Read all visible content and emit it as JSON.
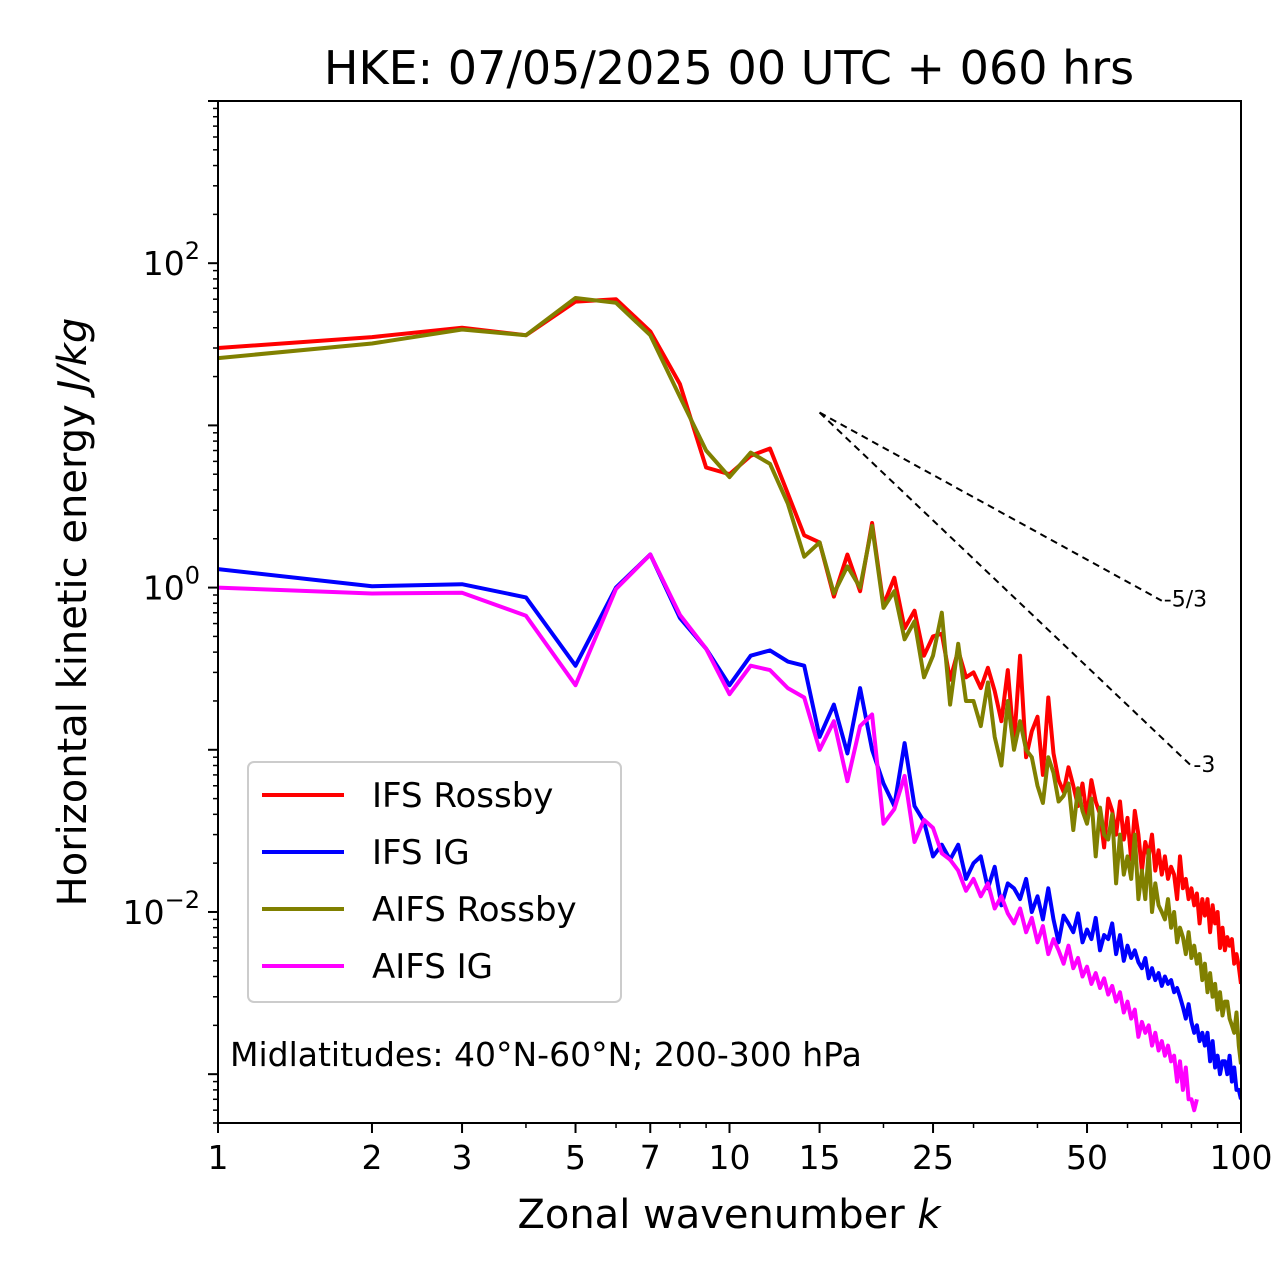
{
  "chart_data": {
    "type": "line",
    "title": "HKE: 07/05/2025 00 UTC + 060 hrs",
    "xlabel": "Zonal wavenumber",
    "xlabel_italic": "k",
    "ylabel": "Horizontal kinetic energy",
    "ylabel_italic": "J/kg",
    "xscale": "log",
    "yscale": "log",
    "xlim": [
      1,
      100
    ],
    "ylim": [
      0.0005,
      1000
    ],
    "x_ticks": [
      {
        "value": 1,
        "label": "1"
      },
      {
        "value": 2,
        "label": "2"
      },
      {
        "value": 3,
        "label": "3"
      },
      {
        "value": 5,
        "label": "5"
      },
      {
        "value": 7,
        "label": "7"
      },
      {
        "value": 10,
        "label": "10"
      },
      {
        "value": 15,
        "label": "15"
      },
      {
        "value": 25,
        "label": "25"
      },
      {
        "value": 50,
        "label": "50"
      },
      {
        "value": 100,
        "label": "100"
      }
    ],
    "y_ticks": [
      {
        "value": 0.01,
        "base": "10",
        "exp": "−2"
      },
      {
        "value": 1,
        "base": "10",
        "exp": "0"
      },
      {
        "value": 100,
        "base": "10",
        "exp": "2"
      }
    ],
    "grid": false,
    "legend_position": "lower-left",
    "annotation": "Midlatitudes: 40°N-60°N; 200-300 hPa",
    "reference_lines": [
      {
        "label": "-5/3",
        "x": [
          15,
          70
        ],
        "y": [
          12.0,
          0.83
        ]
      },
      {
        "label": "-3",
        "x": [
          15,
          80
        ],
        "y": [
          12.0,
          0.0795
        ]
      }
    ],
    "series": [
      {
        "name": "IFS Rossby",
        "color": "#ff0000",
        "x": [
          1,
          2,
          3,
          4,
          5,
          6,
          7,
          8,
          9,
          10,
          11,
          12,
          13,
          14,
          15,
          16,
          17,
          18,
          19,
          20,
          21,
          22,
          23,
          24,
          25,
          26,
          27,
          28,
          29,
          30,
          31,
          32,
          33,
          34,
          35,
          36,
          37,
          38,
          39,
          40,
          41,
          42,
          43,
          44,
          45,
          46,
          47,
          48,
          49,
          50,
          51,
          52,
          53,
          54,
          55,
          56,
          57,
          58,
          59,
          60,
          61,
          62,
          63,
          64,
          65,
          66,
          67,
          68,
          69,
          70,
          71,
          72,
          73,
          74,
          75,
          76,
          77,
          78,
          79,
          80,
          81,
          82,
          83,
          84,
          85,
          86,
          87,
          88,
          89,
          90,
          91,
          92,
          93,
          94,
          95,
          96,
          97,
          98,
          99,
          100
        ],
        "y": [
          30,
          35,
          40,
          36,
          58,
          60,
          38,
          18,
          5.5,
          5.0,
          6.5,
          7.2,
          3.8,
          2.1,
          1.9,
          0.88,
          1.6,
          0.95,
          2.5,
          0.78,
          1.15,
          0.56,
          0.72,
          0.38,
          0.5,
          0.52,
          0.27,
          0.41,
          0.28,
          0.3,
          0.24,
          0.32,
          0.23,
          0.15,
          0.31,
          0.11,
          0.38,
          0.09,
          0.13,
          0.16,
          0.07,
          0.21,
          0.095,
          0.065,
          0.055,
          0.078,
          0.06,
          0.045,
          0.062,
          0.038,
          0.065,
          0.048,
          0.04,
          0.025,
          0.05,
          0.042,
          0.03,
          0.048,
          0.028,
          0.038,
          0.021,
          0.042,
          0.03,
          0.018,
          0.027,
          0.022,
          0.03,
          0.018,
          0.024,
          0.017,
          0.022,
          0.016,
          0.019,
          0.017,
          0.012,
          0.022,
          0.014,
          0.016,
          0.012,
          0.014,
          0.011,
          0.013,
          0.0085,
          0.012,
          0.0095,
          0.012,
          0.0075,
          0.011,
          0.0085,
          0.01,
          0.006,
          0.008,
          0.0058,
          0.007,
          0.0062,
          0.0068,
          0.0048,
          0.0055,
          0.0046,
          0.0036
        ]
      },
      {
        "name": "IFS IG",
        "color": "#0000ff",
        "x": [
          1,
          2,
          3,
          4,
          5,
          6,
          7,
          8,
          9,
          10,
          11,
          12,
          13,
          14,
          15,
          16,
          17,
          18,
          19,
          20,
          21,
          22,
          23,
          24,
          25,
          26,
          27,
          28,
          29,
          30,
          31,
          32,
          33,
          34,
          35,
          36,
          37,
          38,
          39,
          40,
          41,
          42,
          43,
          44,
          45,
          46,
          47,
          48,
          49,
          50,
          51,
          52,
          53,
          54,
          55,
          56,
          57,
          58,
          59,
          60,
          61,
          62,
          63,
          64,
          65,
          66,
          67,
          68,
          69,
          70,
          71,
          72,
          73,
          74,
          75,
          76,
          77,
          78,
          79,
          80,
          81,
          82,
          83,
          84,
          85,
          86,
          87,
          88,
          89,
          90,
          91,
          92,
          93,
          94,
          95,
          96,
          97,
          98,
          99,
          100
        ],
        "y": [
          1.3,
          1.02,
          1.05,
          0.87,
          0.33,
          1.0,
          1.6,
          0.65,
          0.42,
          0.25,
          0.38,
          0.41,
          0.35,
          0.33,
          0.12,
          0.19,
          0.095,
          0.24,
          0.1,
          0.062,
          0.045,
          0.11,
          0.045,
          0.036,
          0.022,
          0.026,
          0.021,
          0.026,
          0.016,
          0.02,
          0.022,
          0.014,
          0.019,
          0.011,
          0.015,
          0.014,
          0.012,
          0.016,
          0.01,
          0.0125,
          0.009,
          0.014,
          0.009,
          0.0065,
          0.0095,
          0.0085,
          0.0075,
          0.0098,
          0.0065,
          0.0078,
          0.0068,
          0.0092,
          0.0058,
          0.0072,
          0.0068,
          0.0085,
          0.0055,
          0.0072,
          0.005,
          0.0062,
          0.0052,
          0.0058,
          0.0049,
          0.0045,
          0.0052,
          0.0039,
          0.0045,
          0.0038,
          0.0042,
          0.0035,
          0.004,
          0.0036,
          0.0038,
          0.0032,
          0.0034,
          0.003,
          0.0026,
          0.0022,
          0.0027,
          0.0021,
          0.0018,
          0.002,
          0.0016,
          0.0018,
          0.0015,
          0.0018,
          0.0012,
          0.0016,
          0.0011,
          0.0013,
          0.001,
          0.0012,
          0.0012,
          0.001,
          0.0013,
          0.0009,
          0.0011,
          0.0008,
          0.0008,
          0.0007
        ]
      },
      {
        "name": "AIFS Rossby",
        "color": "#808000",
        "x": [
          1,
          2,
          3,
          4,
          5,
          6,
          7,
          8,
          9,
          10,
          11,
          12,
          13,
          14,
          15,
          16,
          17,
          18,
          19,
          20,
          21,
          22,
          23,
          24,
          25,
          26,
          27,
          28,
          29,
          30,
          31,
          32,
          33,
          34,
          35,
          36,
          37,
          38,
          39,
          40,
          41,
          42,
          43,
          44,
          45,
          46,
          47,
          48,
          49,
          50,
          51,
          52,
          53,
          54,
          55,
          56,
          57,
          58,
          59,
          60,
          61,
          62,
          63,
          64,
          65,
          66,
          67,
          68,
          69,
          70,
          71,
          72,
          73,
          74,
          75,
          76,
          77,
          78,
          79,
          80,
          81,
          82,
          83,
          84,
          85,
          86,
          87,
          88,
          89,
          90,
          91,
          92,
          93,
          94,
          95,
          96,
          97,
          98,
          99,
          100
        ],
        "y": [
          26,
          32,
          39,
          36,
          61,
          57,
          36,
          15,
          7.0,
          4.8,
          6.8,
          5.8,
          3.3,
          1.55,
          1.9,
          0.92,
          1.35,
          1.0,
          2.4,
          0.75,
          0.95,
          0.48,
          0.62,
          0.28,
          0.38,
          0.7,
          0.19,
          0.45,
          0.2,
          0.2,
          0.14,
          0.26,
          0.12,
          0.08,
          0.2,
          0.1,
          0.15,
          0.1,
          0.09,
          0.06,
          0.047,
          0.09,
          0.072,
          0.048,
          0.052,
          0.062,
          0.032,
          0.058,
          0.042,
          0.035,
          0.05,
          0.022,
          0.044,
          0.03,
          0.028,
          0.04,
          0.015,
          0.03,
          0.017,
          0.022,
          0.016,
          0.03,
          0.012,
          0.018,
          0.012,
          0.024,
          0.01,
          0.015,
          0.011,
          0.01,
          0.009,
          0.012,
          0.008,
          0.01,
          0.0065,
          0.008,
          0.007,
          0.0055,
          0.0075,
          0.0052,
          0.0062,
          0.0048,
          0.0055,
          0.0038,
          0.0048,
          0.0032,
          0.0042,
          0.003,
          0.0036,
          0.0025,
          0.0032,
          0.0023,
          0.0028,
          0.0028,
          0.0022,
          0.002,
          0.0018,
          0.0024,
          0.0015,
          0.00115
        ]
      },
      {
        "name": "AIFS IG",
        "color": "#ff00ff",
        "x": [
          1,
          2,
          3,
          4,
          5,
          6,
          7,
          8,
          9,
          10,
          11,
          12,
          13,
          14,
          15,
          16,
          17,
          18,
          19,
          20,
          21,
          22,
          23,
          24,
          25,
          26,
          27,
          28,
          29,
          30,
          31,
          32,
          33,
          34,
          35,
          36,
          37,
          38,
          39,
          40,
          41,
          42,
          43,
          44,
          45,
          46,
          47,
          48,
          49,
          50,
          51,
          52,
          53,
          54,
          55,
          56,
          57,
          58,
          59,
          60,
          61,
          62,
          63,
          64,
          65,
          66,
          67,
          68,
          69,
          70,
          71,
          72,
          73,
          74,
          75,
          76,
          77,
          78,
          79,
          80,
          81,
          82
        ],
        "y": [
          1.0,
          0.92,
          0.93,
          0.67,
          0.25,
          0.98,
          1.6,
          0.68,
          0.42,
          0.22,
          0.33,
          0.31,
          0.24,
          0.21,
          0.1,
          0.15,
          0.064,
          0.14,
          0.165,
          0.035,
          0.043,
          0.069,
          0.027,
          0.037,
          0.033,
          0.023,
          0.021,
          0.018,
          0.0135,
          0.016,
          0.0125,
          0.015,
          0.0105,
          0.0125,
          0.0098,
          0.0085,
          0.0105,
          0.0075,
          0.0092,
          0.0065,
          0.0082,
          0.0055,
          0.0068,
          0.0058,
          0.0048,
          0.0062,
          0.0045,
          0.0052,
          0.004,
          0.0046,
          0.0036,
          0.0042,
          0.0034,
          0.0039,
          0.0031,
          0.0035,
          0.0028,
          0.0032,
          0.0024,
          0.0028,
          0.0022,
          0.0025,
          0.0017,
          0.0021,
          0.0018,
          0.002,
          0.0015,
          0.0018,
          0.0014,
          0.0016,
          0.0013,
          0.0015,
          0.0012,
          0.0013,
          0.0009,
          0.0012,
          0.0008,
          0.0011,
          0.0007,
          0.0007,
          0.0006,
          0.0007
        ]
      }
    ]
  }
}
